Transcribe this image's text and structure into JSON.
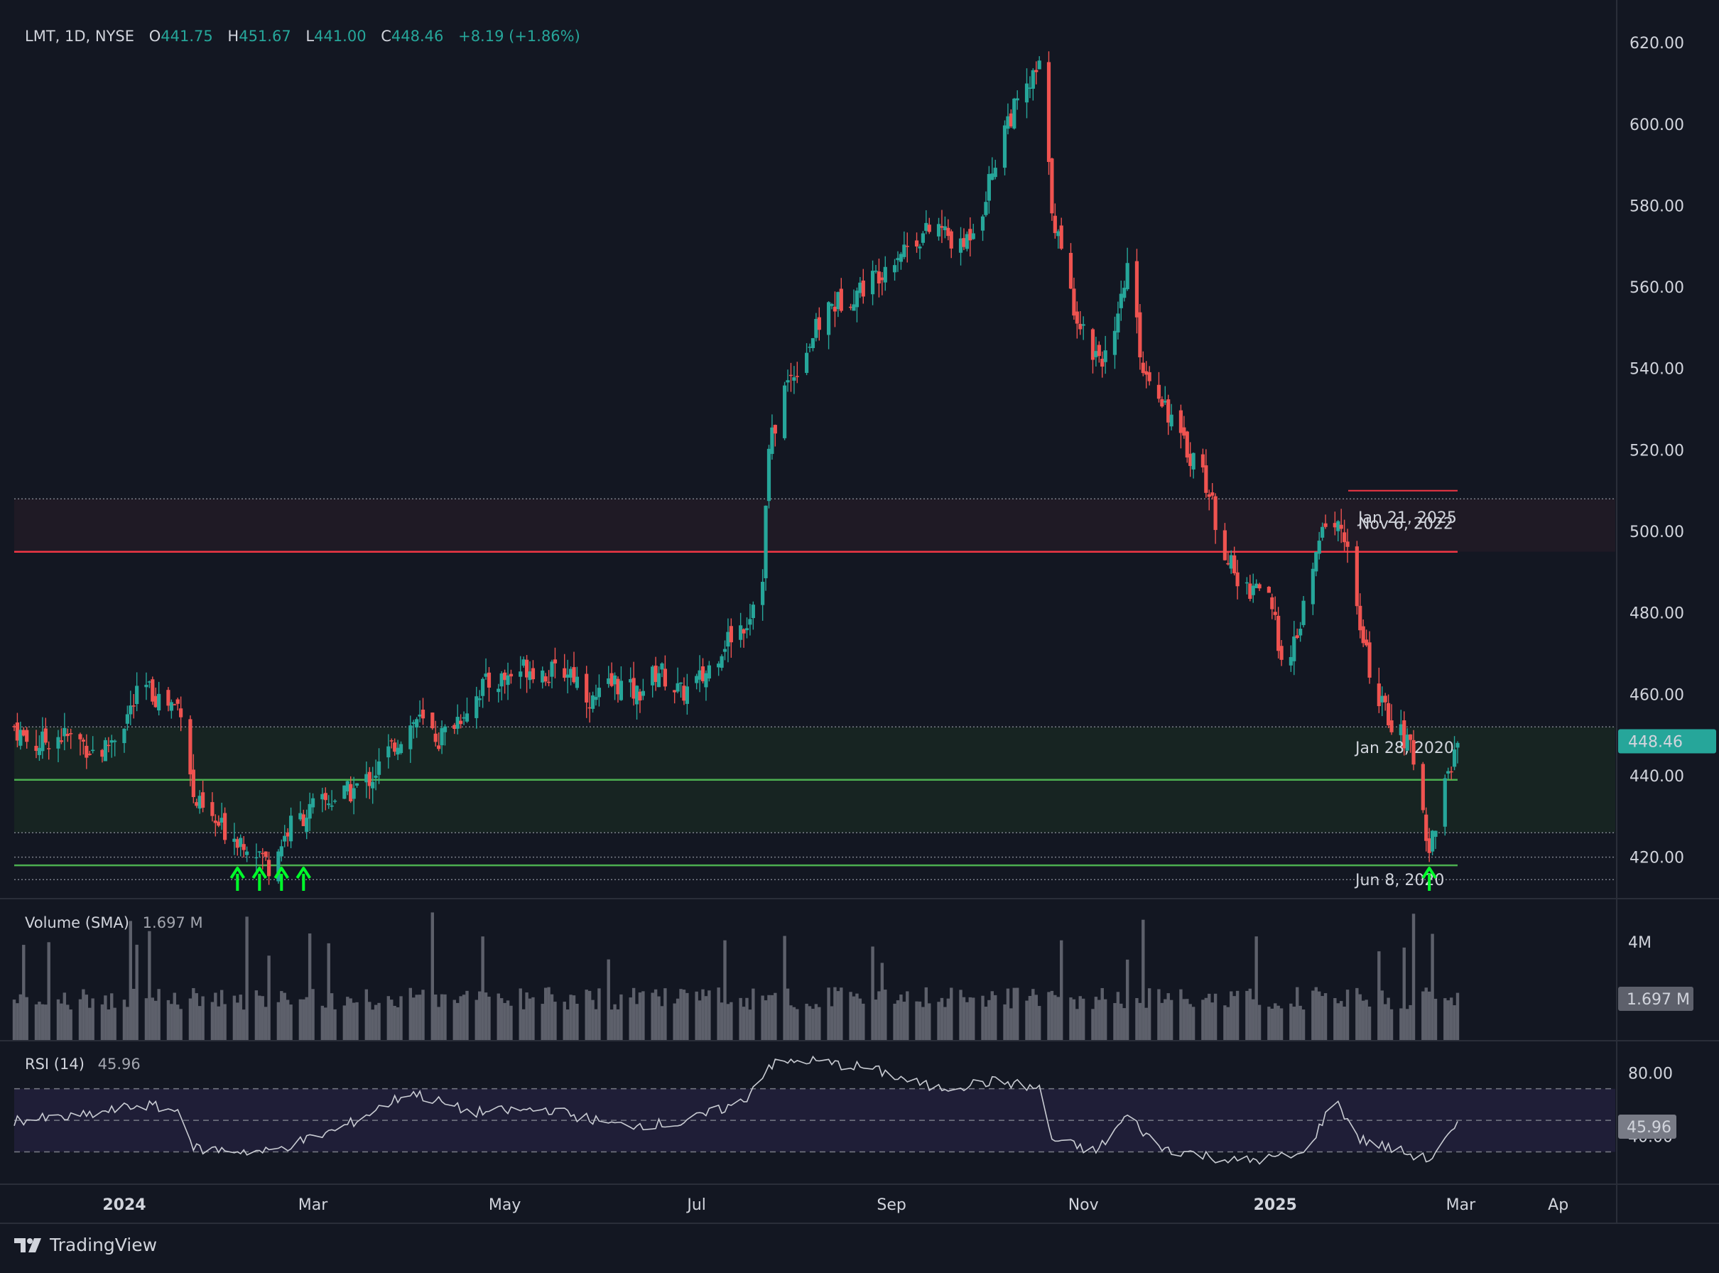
{
  "header": {
    "symbol": "LMT, 1D, NYSE",
    "o_label": "O",
    "o_value": "441.75",
    "h_label": "H",
    "h_value": "451.67",
    "l_label": "L",
    "l_value": "441.00",
    "c_label": "C",
    "c_value": "448.46",
    "change": "+8.19 (+1.86%)"
  },
  "colors": {
    "background": "#131722",
    "up": "#26a69a",
    "down": "#ef5350",
    "resistance": "#f23645",
    "support": "#4caf50",
    "arrow": "#00ff2a",
    "rsi_line": "#c9ccd3",
    "rsi_band": "#2a2548",
    "volume": "#5d606b"
  },
  "chart_data": [
    {
      "type": "candlestick",
      "title": "LMT, 1D, NYSE",
      "y_ticks": [
        "620.00",
        "600.00",
        "580.00",
        "560.00",
        "540.00",
        "520.00",
        "500.00",
        "480.00",
        "460.00",
        "440.00",
        "420.00"
      ],
      "ylim": [
        410,
        627
      ],
      "x_ticks": [
        "2024",
        "Mar",
        "May",
        "Jul",
        "Sep",
        "Nov",
        "2025",
        "Mar",
        "Ap"
      ],
      "last_price": "448.46",
      "close_path": [
        {
          "d": "2023-11-27",
          "c": 452
        },
        {
          "d": "2023-12-03",
          "c": 447
        },
        {
          "d": "2023-12-10",
          "c": 450
        },
        {
          "d": "2023-12-17",
          "c": 449
        },
        {
          "d": "2023-12-24",
          "c": 445
        },
        {
          "d": "2023-12-31",
          "c": 452
        },
        {
          "d": "2024-01-07",
          "c": 462
        },
        {
          "d": "2024-01-14",
          "c": 458
        },
        {
          "d": "2024-01-20",
          "c": 457
        },
        {
          "d": "2024-01-23",
          "c": 434
        },
        {
          "d": "2024-01-30",
          "c": 428
        },
        {
          "d": "2024-02-06",
          "c": 425
        },
        {
          "d": "2024-02-11",
          "c": 423
        },
        {
          "d": "2024-02-16",
          "c": 418
        },
        {
          "d": "2024-02-23",
          "c": 428
        },
        {
          "d": "2024-03-03",
          "c": 433
        },
        {
          "d": "2024-03-13",
          "c": 436
        },
        {
          "d": "2024-03-20",
          "c": 440
        },
        {
          "d": "2024-03-27",
          "c": 448
        },
        {
          "d": "2024-04-03",
          "c": 454
        },
        {
          "d": "2024-04-10",
          "c": 449
        },
        {
          "d": "2024-04-17",
          "c": 455
        },
        {
          "d": "2024-04-24",
          "c": 462
        },
        {
          "d": "2024-05-01",
          "c": 464
        },
        {
          "d": "2024-05-08",
          "c": 467
        },
        {
          "d": "2024-05-15",
          "c": 465
        },
        {
          "d": "2024-05-22",
          "c": 466
        },
        {
          "d": "2024-05-29",
          "c": 458
        },
        {
          "d": "2024-06-05",
          "c": 463
        },
        {
          "d": "2024-06-12",
          "c": 460
        },
        {
          "d": "2024-06-19",
          "c": 466
        },
        {
          "d": "2024-06-26",
          "c": 460
        },
        {
          "d": "2024-07-03",
          "c": 464
        },
        {
          "d": "2024-07-10",
          "c": 473
        },
        {
          "d": "2024-07-17",
          "c": 478
        },
        {
          "d": "2024-07-22",
          "c": 490
        },
        {
          "d": "2024-07-24",
          "c": 520
        },
        {
          "d": "2024-07-29",
          "c": 535
        },
        {
          "d": "2024-08-05",
          "c": 545
        },
        {
          "d": "2024-08-12",
          "c": 555
        },
        {
          "d": "2024-08-19",
          "c": 558
        },
        {
          "d": "2024-08-26",
          "c": 562
        },
        {
          "d": "2024-09-02",
          "c": 568
        },
        {
          "d": "2024-09-09",
          "c": 572
        },
        {
          "d": "2024-09-16",
          "c": 575
        },
        {
          "d": "2024-09-23",
          "c": 569
        },
        {
          "d": "2024-09-30",
          "c": 580
        },
        {
          "d": "2024-10-07",
          "c": 600
        },
        {
          "d": "2024-10-14",
          "c": 608
        },
        {
          "d": "2024-10-18",
          "c": 614
        },
        {
          "d": "2024-10-22",
          "c": 580
        },
        {
          "d": "2024-10-27",
          "c": 560
        },
        {
          "d": "2024-11-03",
          "c": 545
        },
        {
          "d": "2024-11-10",
          "c": 542
        },
        {
          "d": "2024-11-15",
          "c": 565
        },
        {
          "d": "2024-11-20",
          "c": 540
        },
        {
          "d": "2024-11-25",
          "c": 535
        },
        {
          "d": "2024-12-02",
          "c": 522
        },
        {
          "d": "2024-12-09",
          "c": 515
        },
        {
          "d": "2024-12-14",
          "c": 500
        },
        {
          "d": "2024-12-21",
          "c": 485
        },
        {
          "d": "2024-12-28",
          "c": 488
        },
        {
          "d": "2025-01-05",
          "c": 465
        },
        {
          "d": "2025-01-12",
          "c": 487
        },
        {
          "d": "2025-01-17",
          "c": 503
        },
        {
          "d": "2025-01-23",
          "c": 500
        },
        {
          "d": "2025-01-28",
          "c": 475
        },
        {
          "d": "2025-02-03",
          "c": 458
        },
        {
          "d": "2025-02-10",
          "c": 450
        },
        {
          "d": "2025-02-14",
          "c": 445
        },
        {
          "d": "2025-02-19",
          "c": 422
        },
        {
          "d": "2025-02-24",
          "c": 438
        },
        {
          "d": "2025-02-28",
          "c": 448
        }
      ],
      "zones": [
        {
          "name": "resistance-zone",
          "top": 508,
          "bottom": 495,
          "line": 495
        },
        {
          "name": "support-zone",
          "top": 452,
          "bottom": 426,
          "line": 439
        },
        {
          "name": "support-line-low",
          "line": 418
        }
      ],
      "annotations": [
        {
          "text": "Jan 21, 2025",
          "y": 503.5
        },
        {
          "text": "Nov 6, 2022",
          "y": 502
        },
        {
          "text": "Jan 28, 2020",
          "y": 447
        },
        {
          "text": "Jun 8, 2020",
          "y": 414.5
        }
      ],
      "signal_arrows_dates": [
        "2024-02-06",
        "2024-02-13",
        "2024-02-20",
        "2024-02-27",
        "2025-02-19"
      ]
    },
    {
      "type": "bar",
      "title": "Volume (SMA)",
      "value": "1.697 M",
      "y_tick": "4M",
      "ylim": [
        0,
        5000000
      ]
    },
    {
      "type": "line",
      "title": "RSI (14)",
      "value": "45.96",
      "y_ticks": [
        "80.00",
        "40.00"
      ],
      "band": [
        30,
        70
      ],
      "mid": 50,
      "rsi_path": [
        {
          "d": "2023-11-27",
          "v": 50
        },
        {
          "d": "2023-12-17",
          "v": 52
        },
        {
          "d": "2024-01-07",
          "v": 60
        },
        {
          "d": "2024-01-20",
          "v": 55
        },
        {
          "d": "2024-01-23",
          "v": 32
        },
        {
          "d": "2024-02-16",
          "v": 30
        },
        {
          "d": "2024-03-10",
          "v": 45
        },
        {
          "d": "2024-04-01",
          "v": 68
        },
        {
          "d": "2024-04-20",
          "v": 55
        },
        {
          "d": "2024-05-15",
          "v": 57
        },
        {
          "d": "2024-06-05",
          "v": 47
        },
        {
          "d": "2024-06-26",
          "v": 48
        },
        {
          "d": "2024-07-16",
          "v": 62
        },
        {
          "d": "2024-07-24",
          "v": 85
        },
        {
          "d": "2024-08-05",
          "v": 88
        },
        {
          "d": "2024-08-25",
          "v": 83
        },
        {
          "d": "2024-09-15",
          "v": 70
        },
        {
          "d": "2024-10-05",
          "v": 75
        },
        {
          "d": "2024-10-18",
          "v": 70
        },
        {
          "d": "2024-10-22",
          "v": 38
        },
        {
          "d": "2024-11-05",
          "v": 30
        },
        {
          "d": "2024-11-15",
          "v": 53
        },
        {
          "d": "2024-11-25",
          "v": 33
        },
        {
          "d": "2024-12-20",
          "v": 24
        },
        {
          "d": "2025-01-10",
          "v": 28
        },
        {
          "d": "2025-01-20",
          "v": 63
        },
        {
          "d": "2025-01-28",
          "v": 38
        },
        {
          "d": "2025-02-19",
          "v": 25
        },
        {
          "d": "2025-02-28",
          "v": 46
        }
      ]
    }
  ],
  "brand": {
    "name": "TradingView"
  }
}
